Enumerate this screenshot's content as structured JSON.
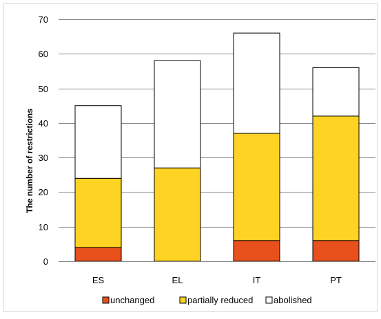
{
  "chart_data": {
    "type": "bar",
    "stacked": true,
    "categories": [
      "ES",
      "EL",
      "IT",
      "PT"
    ],
    "series": [
      {
        "name": "unchanged",
        "values": [
          4,
          0,
          6,
          6
        ],
        "color": "#e8501c"
      },
      {
        "name": "partially reduced",
        "values": [
          20,
          27,
          31,
          36
        ],
        "color": "#ffd324"
      },
      {
        "name": "abolished",
        "values": [
          21,
          31,
          29,
          14
        ],
        "color": "#ffffff"
      }
    ],
    "title": "",
    "xlabel": "",
    "ylabel": "The number of restrictions",
    "ylim": [
      0,
      70
    ],
    "yticks": [
      0,
      10,
      20,
      30,
      40,
      50,
      60,
      70
    ],
    "grid": true,
    "legend_position": "bottom"
  }
}
